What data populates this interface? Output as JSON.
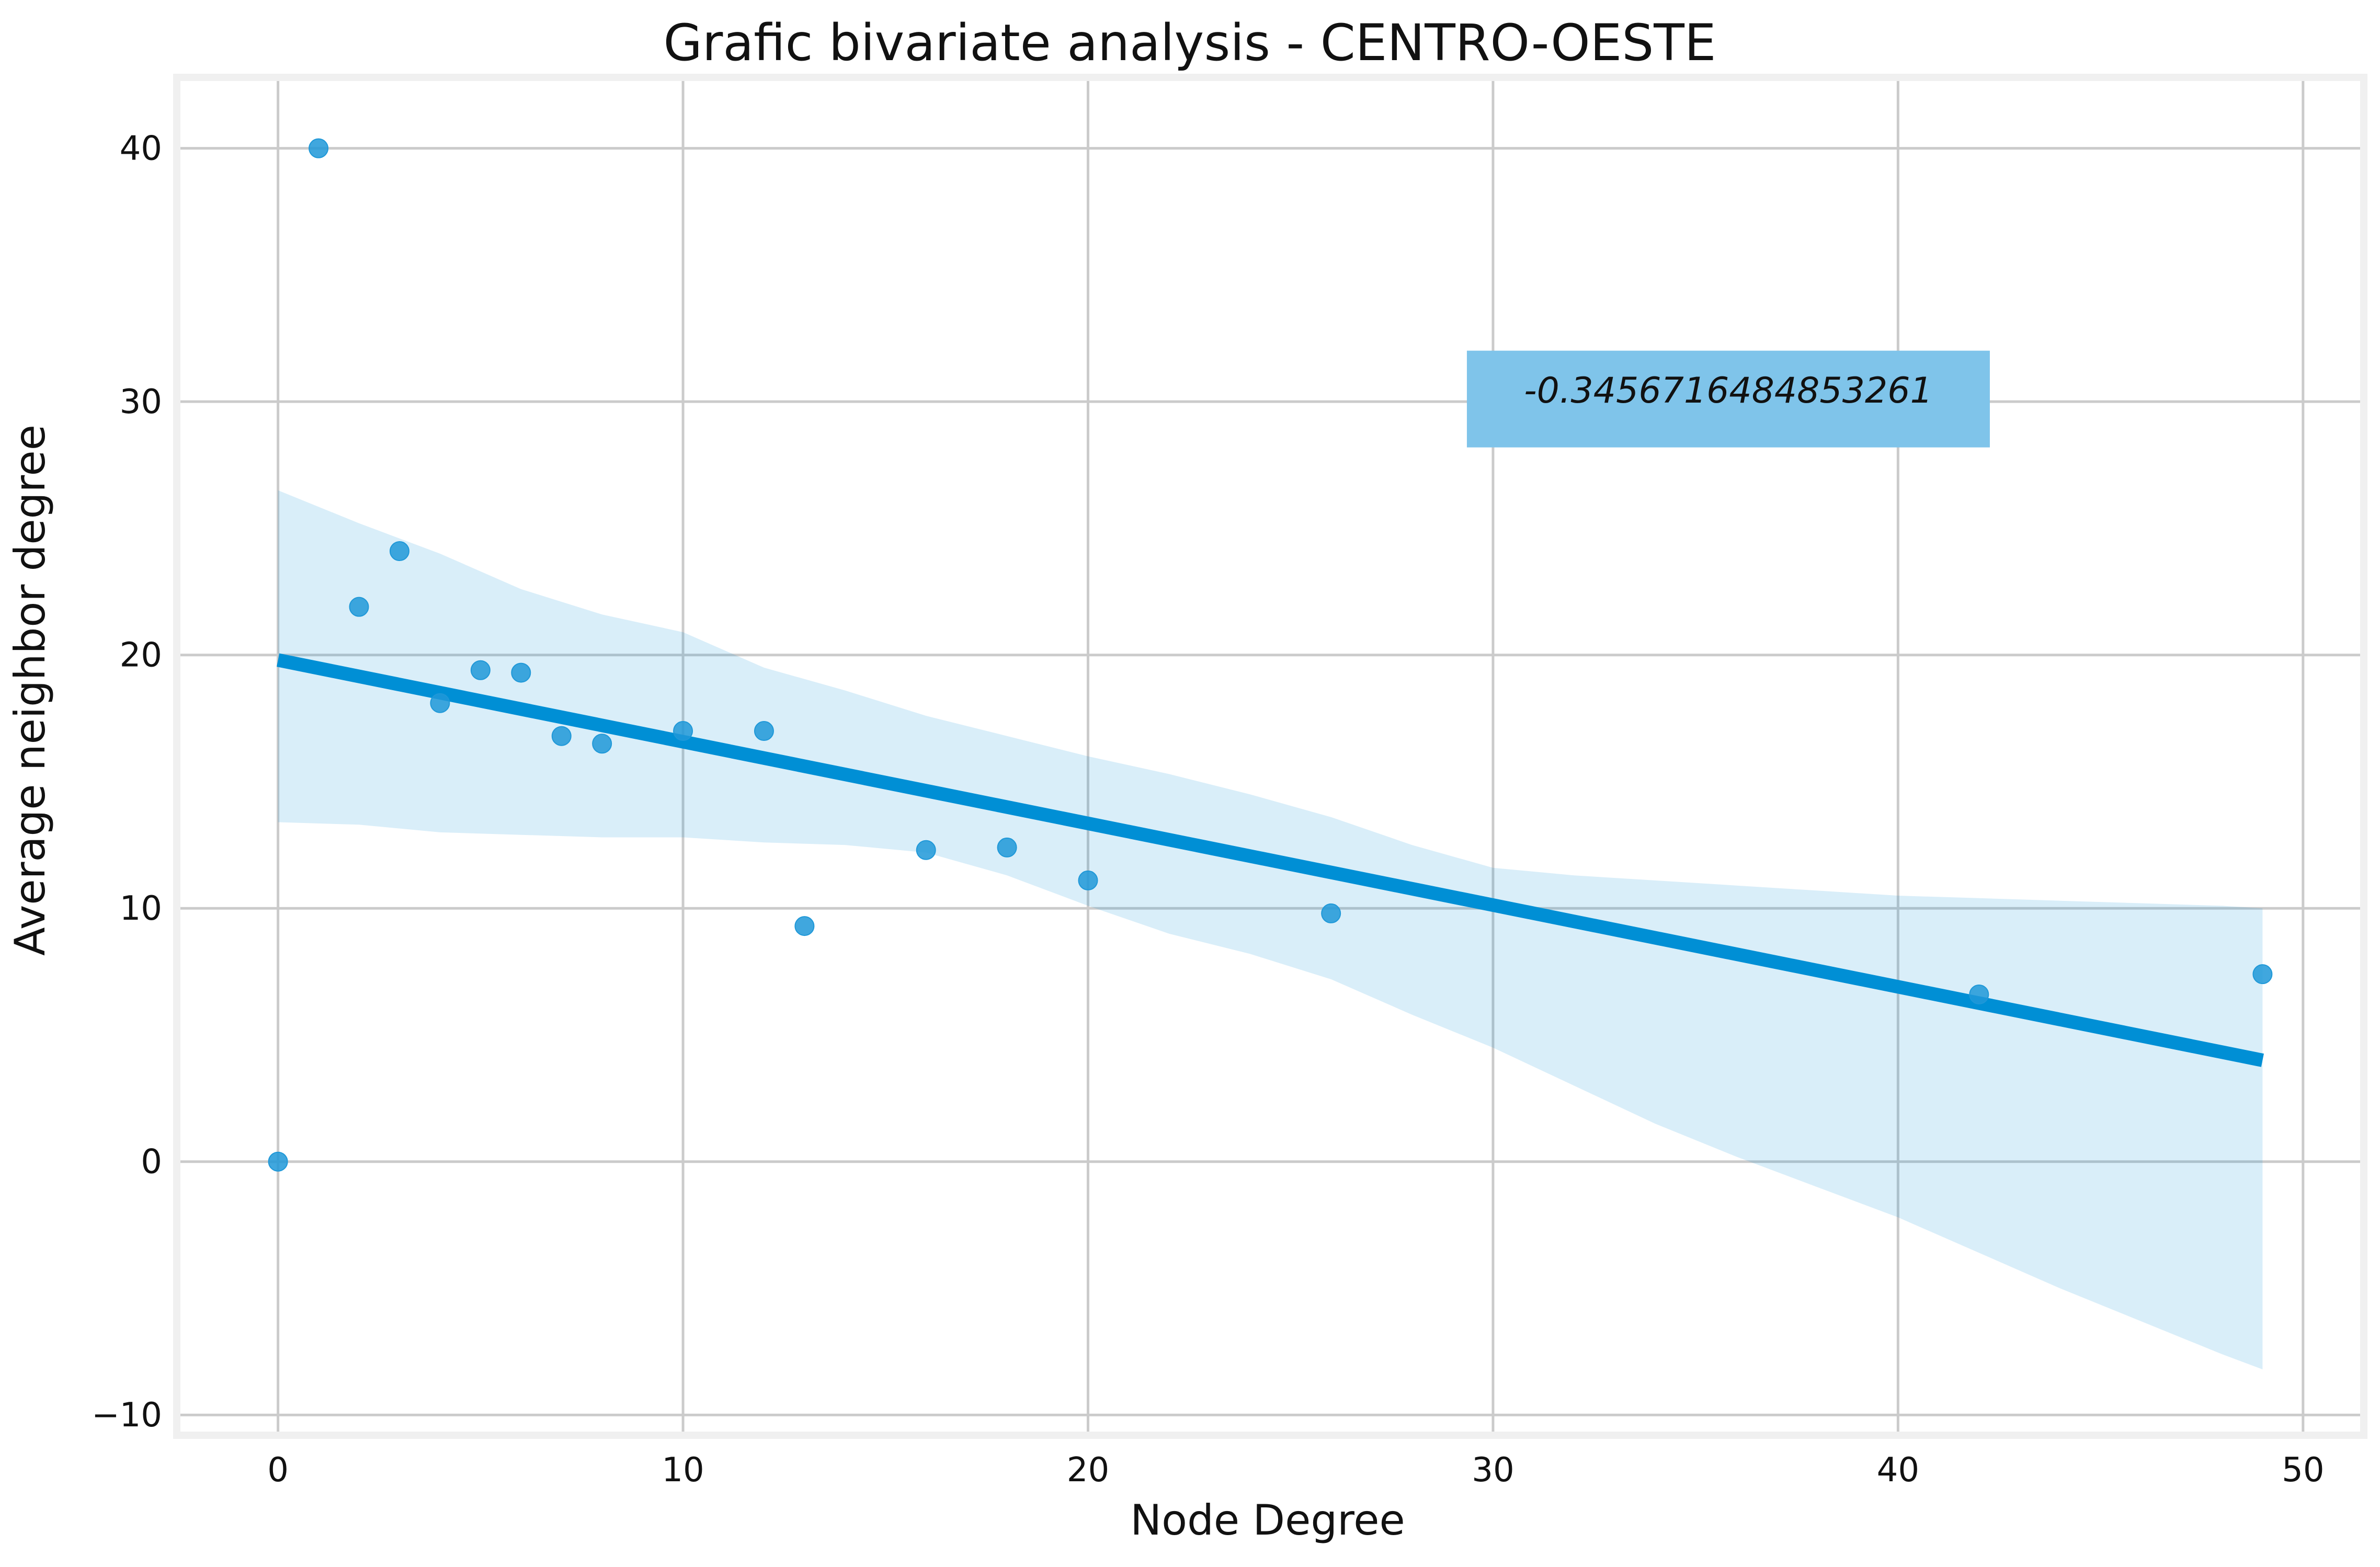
{
  "chart_data": {
    "type": "scatter",
    "title": "Grafic bivariate analysis - CENTRO-OESTE",
    "xlabel": "Node Degree",
    "ylabel": "Average neighbor degree",
    "xlim": [
      -2.5,
      51.5
    ],
    "ylim": [
      -10.8,
      42.8
    ],
    "xticks": [
      0,
      10,
      20,
      30,
      40,
      50
    ],
    "yticks": [
      -10,
      0,
      10,
      20,
      30,
      40
    ],
    "xtick_labels": [
      "0",
      "10",
      "20",
      "30",
      "40",
      "50"
    ],
    "ytick_labels": [
      "−10",
      "0",
      "10",
      "20",
      "30",
      "40"
    ],
    "grid": true,
    "points": [
      {
        "x": 0,
        "y": 0
      },
      {
        "x": 1,
        "y": 40
      },
      {
        "x": 2,
        "y": 21.9
      },
      {
        "x": 3,
        "y": 24.1
      },
      {
        "x": 4,
        "y": 18.1
      },
      {
        "x": 5,
        "y": 19.4
      },
      {
        "x": 6,
        "y": 19.3
      },
      {
        "x": 7,
        "y": 16.8
      },
      {
        "x": 8,
        "y": 16.5
      },
      {
        "x": 10,
        "y": 17
      },
      {
        "x": 12,
        "y": 17
      },
      {
        "x": 13,
        "y": 9.3
      },
      {
        "x": 16,
        "y": 12.3
      },
      {
        "x": 18,
        "y": 12.4
      },
      {
        "x": 20,
        "y": 11.1
      },
      {
        "x": 26,
        "y": 9.8
      },
      {
        "x": 42,
        "y": 6.6
      },
      {
        "x": 49,
        "y": 7.4
      }
    ],
    "regression_line": {
      "x": [
        0,
        49
      ],
      "y": [
        19.8,
        4.0
      ]
    },
    "confidence_band": {
      "x": [
        0,
        2,
        4,
        6,
        8,
        10,
        12,
        14,
        16,
        18,
        20,
        22,
        24,
        26,
        28,
        30,
        32,
        34,
        36,
        38,
        40,
        42,
        44,
        46,
        48,
        49
      ],
      "upper": [
        26.5,
        25.2,
        24.0,
        22.6,
        21.6,
        20.9,
        19.5,
        18.6,
        17.6,
        16.8,
        16.0,
        15.3,
        14.5,
        13.6,
        12.5,
        11.6,
        11.3,
        11.1,
        10.9,
        10.7,
        10.5,
        10.4,
        10.3,
        10.2,
        10.1,
        10.0
      ],
      "lower": [
        13.4,
        13.3,
        13.0,
        12.9,
        12.8,
        12.8,
        12.6,
        12.5,
        12.2,
        11.3,
        10.1,
        9.0,
        8.2,
        7.2,
        5.8,
        4.5,
        3.0,
        1.5,
        0.2,
        -1.0,
        -2.2,
        -3.6,
        -5.0,
        -6.3,
        -7.6,
        -8.2
      ]
    },
    "annotation": {
      "text": "-0.3456716484853261",
      "x": 30,
      "y": 30
    },
    "colors": {
      "points": "#1f98d8",
      "line": "#008fd5",
      "band": "#008fd5",
      "annot_box": "#7fc4ea",
      "frame": "#f0f0f0"
    }
  }
}
